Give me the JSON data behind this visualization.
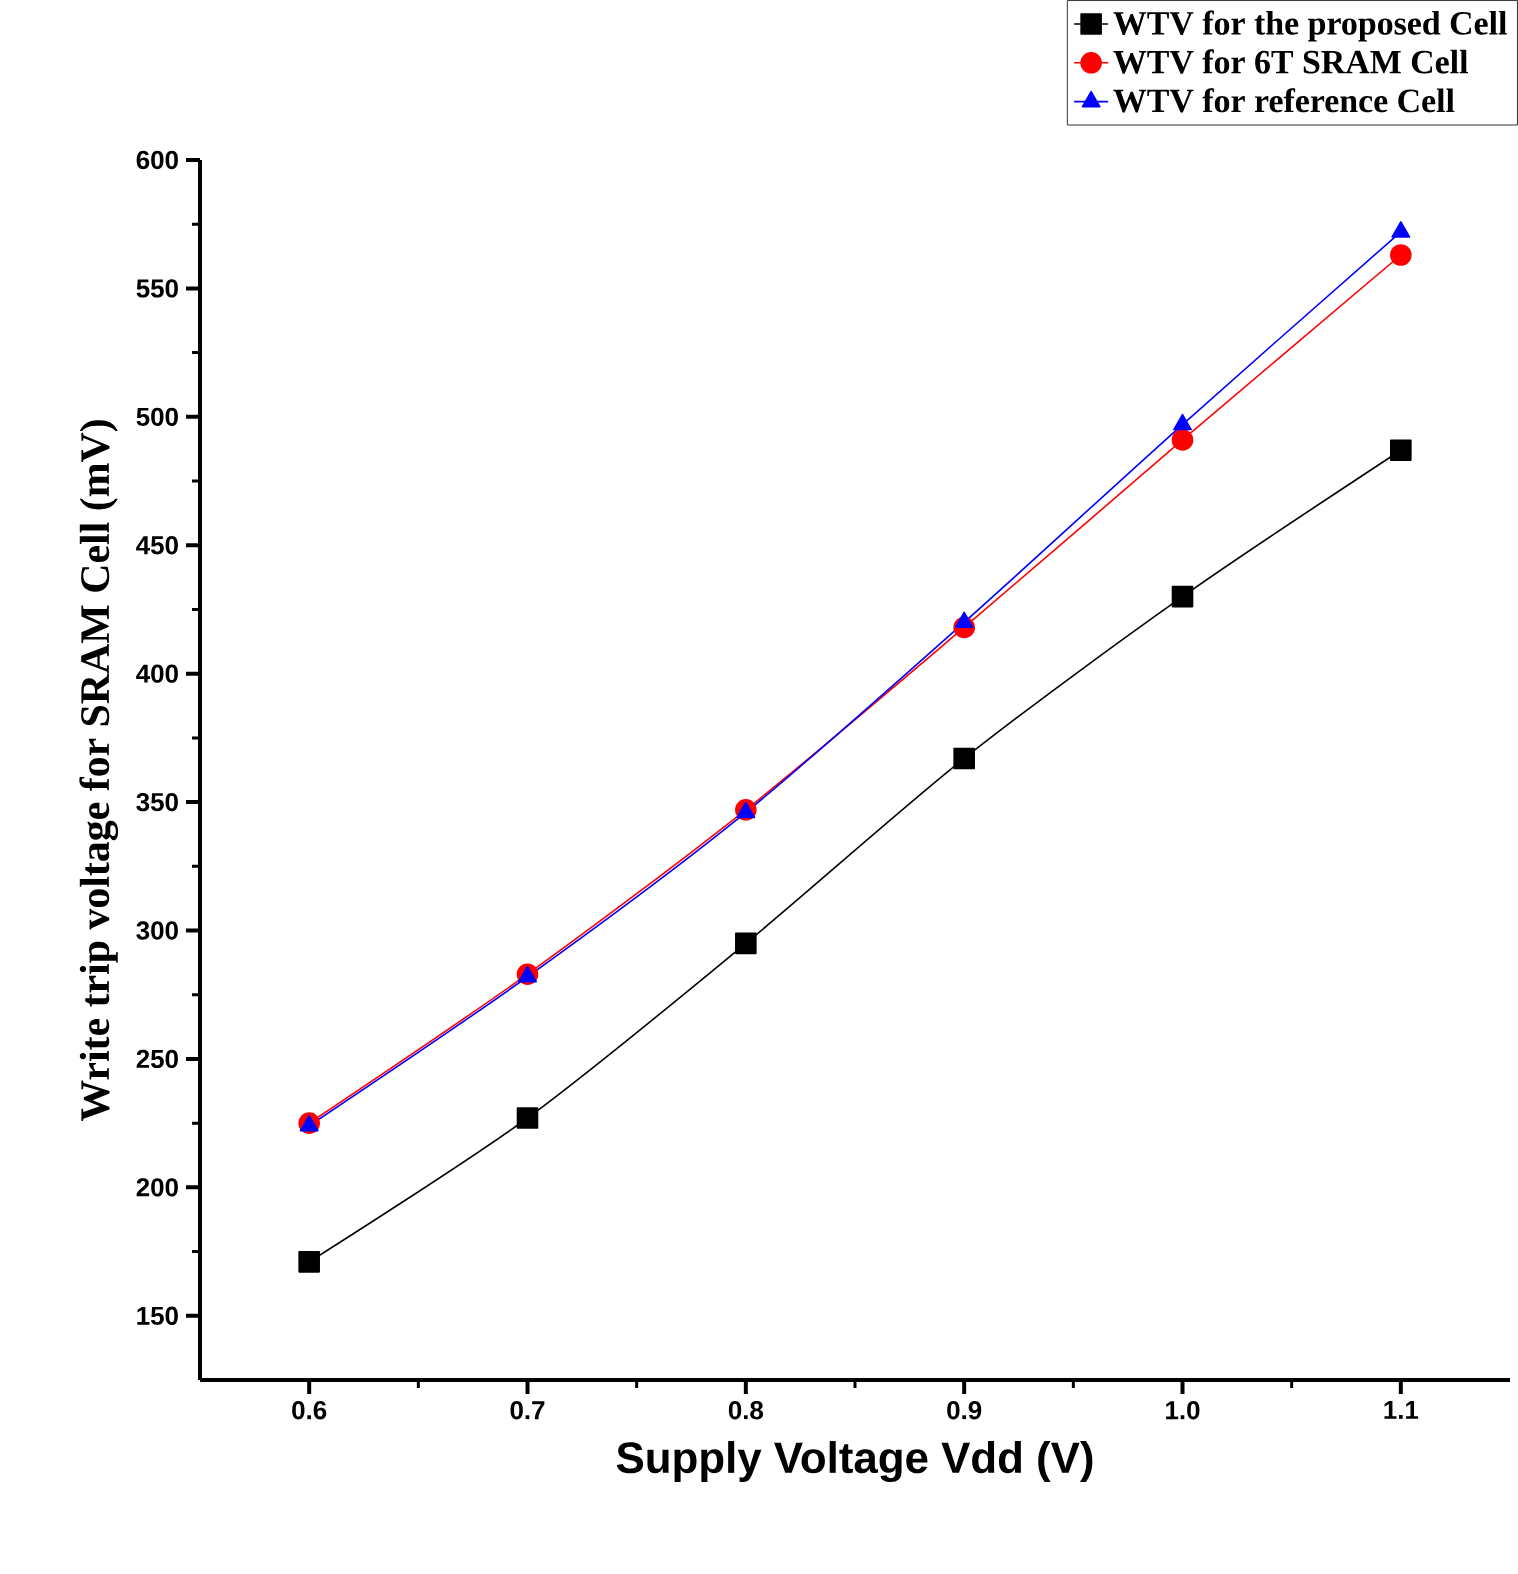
{
  "chart_data": {
    "type": "line",
    "xlabel": "Supply Voltage Vdd (V)",
    "ylabel": "Write trip voltage for SRAM Cell (mV)",
    "x": [
      0.6,
      0.7,
      0.8,
      0.9,
      1.0,
      1.1
    ],
    "series": [
      {
        "name": "WTV for the proposed Cell",
        "color": "#000000",
        "marker": "square",
        "values": [
          171,
          227,
          295,
          367,
          430,
          487
        ]
      },
      {
        "name": "WTV for 6T SRAM Cell",
        "color": "#ff0000",
        "marker": "circle",
        "values": [
          225,
          283,
          347,
          418,
          491,
          563
        ]
      },
      {
        "name": "WTV for reference Cell",
        "color": "#0000ff",
        "marker": "triangle",
        "values": [
          224,
          282,
          346,
          420,
          497,
          572
        ]
      }
    ],
    "xlim": [
      0.55,
      1.15
    ],
    "ylim": [
      125,
      600
    ],
    "xticks": [
      {
        "value": 0.6,
        "label": "0.6"
      },
      {
        "value": 0.7,
        "label": "0.7"
      },
      {
        "value": 0.8,
        "label": "0.8"
      },
      {
        "value": 0.9,
        "label": "0.9"
      },
      {
        "value": 1.0,
        "label": "1.0"
      },
      {
        "value": 1.1,
        "label": "1.1"
      }
    ],
    "yticks": [
      150,
      200,
      250,
      300,
      350,
      400,
      450,
      500,
      550,
      600
    ],
    "legend": "top right",
    "line_style": "solid",
    "grid": false
  }
}
